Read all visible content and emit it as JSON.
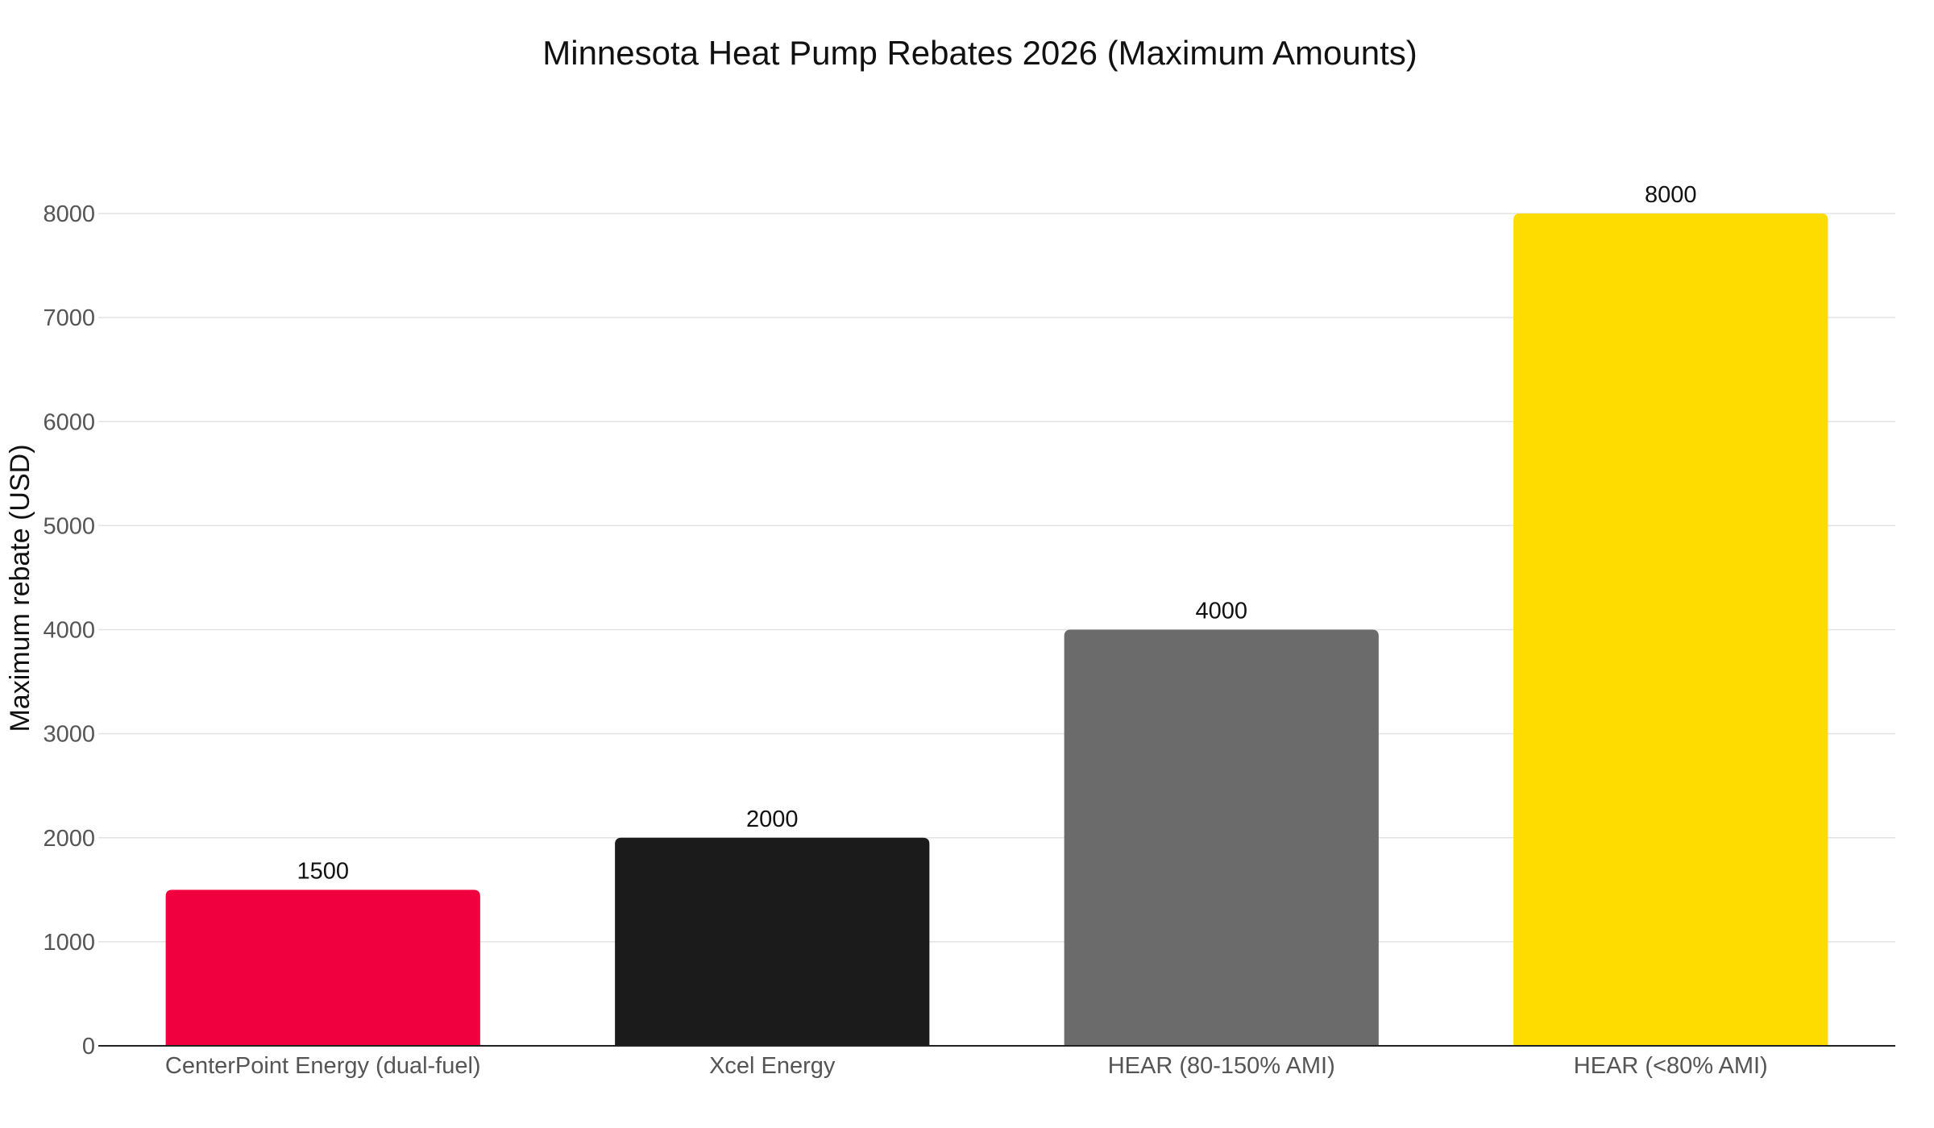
{
  "chart_data": {
    "type": "bar",
    "title": "Minnesota Heat Pump Rebates 2026 (Maximum Amounts)",
    "xlabel": "",
    "ylabel": "Maximum rebate (USD)",
    "categories": [
      "CenterPoint Energy (dual-fuel)",
      "Xcel Energy",
      "HEAR (80-150% AMI)",
      "HEAR (<80% AMI)"
    ],
    "values": [
      1500,
      2000,
      4000,
      8000
    ],
    "colors": [
      "#f0003f",
      "#1b1b1b",
      "#6b6b6b",
      "#ffdc00"
    ],
    "ylim": [
      0,
      8000
    ],
    "yticks": [
      0,
      1000,
      2000,
      3000,
      4000,
      5000,
      6000,
      7000,
      8000
    ],
    "grid": true,
    "legend": "none"
  }
}
